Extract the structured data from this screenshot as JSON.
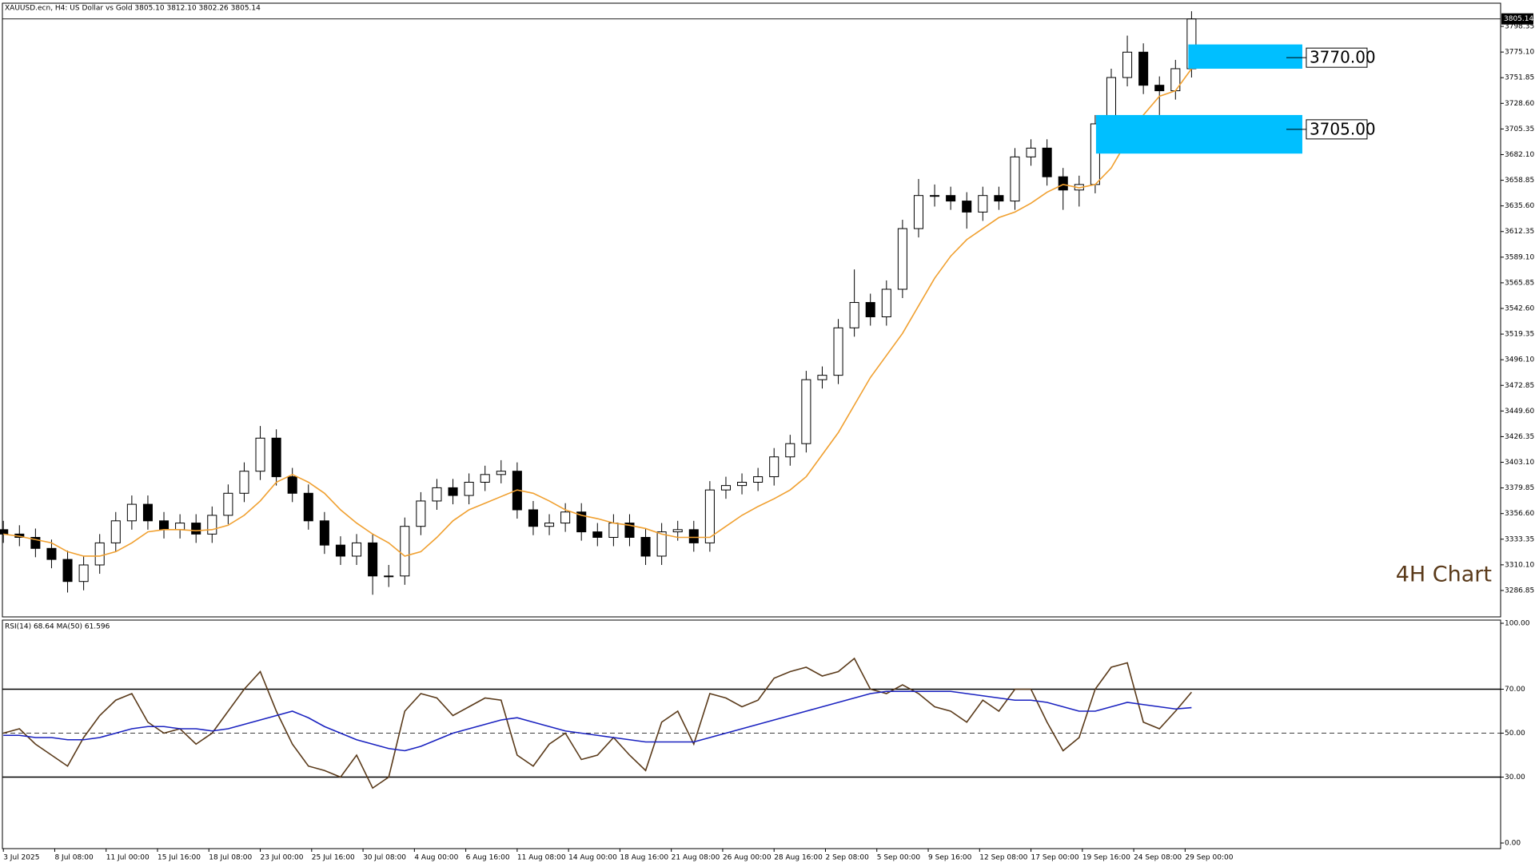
{
  "chart_data": [
    {
      "type": "candlestick",
      "title": "XAUUSD.ecn, H4:  US Dollar vs Gold  3805.10 3812.10 3802.26 3805.14",
      "annotation": "4H Chart",
      "xlim": [
        -0.06,
        93.25
      ],
      "xticks": [
        {
          "value": 0,
          "label": "3 Jul 2025"
        },
        {
          "value": 3.2,
          "label": "8 Jul 08:00"
        },
        {
          "value": 6.4,
          "label": "11 Jul 00:00"
        },
        {
          "value": 9.6,
          "label": "15 Jul 16:00"
        },
        {
          "value": 12.8,
          "label": "18 Jul 08:00"
        },
        {
          "value": 16,
          "label": "23 Jul 00:00"
        },
        {
          "value": 19.2,
          "label": "25 Jul 16:00"
        },
        {
          "value": 22.4,
          "label": "30 Jul 08:00"
        },
        {
          "value": 25.6,
          "label": "4 Aug 00:00"
        },
        {
          "value": 28.8,
          "label": "6 Aug 16:00"
        },
        {
          "value": 32,
          "label": "11 Aug 08:00"
        },
        {
          "value": 35.2,
          "label": "14 Aug 00:00"
        },
        {
          "value": 38.4,
          "label": "18 Aug 16:00"
        },
        {
          "value": 41.6,
          "label": "21 Aug 08:00"
        },
        {
          "value": 44.8,
          "label": "26 Aug 00:00"
        },
        {
          "value": 48,
          "label": "28 Aug 16:00"
        },
        {
          "value": 51.2,
          "label": "2 Sep 08:00"
        },
        {
          "value": 54.4,
          "label": "5 Sep 00:00"
        },
        {
          "value": 57.6,
          "label": "9 Sep 16:00"
        },
        {
          "value": 60.8,
          "label": "12 Sep 08:00"
        },
        {
          "value": 64,
          "label": "17 Sep 00:00"
        },
        {
          "value": 67.2,
          "label": "19 Sep 16:00"
        },
        {
          "value": 70.4,
          "label": "24 Sep 08:00"
        },
        {
          "value": 73.6,
          "label": "29 Sep 00:00"
        }
      ],
      "ylim": [
        3262.9,
        3819.4
      ],
      "yticks": [
        3286.85,
        {
          "value": 3310.1,
          "label": "3310.10"
        },
        3333.35,
        {
          "value": 3356.6,
          "label": "3356.60"
        },
        3379.85,
        {
          "value": 3403.1,
          "label": "3403.10"
        },
        3426.35,
        {
          "value": 3449.6,
          "label": "3449.60"
        },
        3472.85,
        {
          "value": 3496.1,
          "label": "3496.10"
        },
        3519.35,
        {
          "value": 3542.6,
          "label": "3542.60"
        },
        3565.85,
        {
          "value": 3589.1,
          "label": "3589.10"
        },
        3612.35,
        {
          "value": 3635.6,
          "label": "3635.60"
        },
        3658.85,
        {
          "value": 3682.1,
          "label": "3682.10"
        },
        3705.35,
        {
          "value": 3728.6,
          "label": "3728.60"
        },
        3751.85,
        {
          "value": 3775.1,
          "label": "3775.10"
        },
        3798.35
      ],
      "last_price": 3805.14,
      "up_color": "#ffffff",
      "down_color": "#000000",
      "wick_color": "#000000",
      "open": [
        3342,
        3338,
        3335,
        3325,
        3315,
        3295,
        3310,
        3330,
        3350,
        3365,
        3350,
        3342,
        3348,
        3338,
        3355,
        3375,
        3395,
        3425,
        3390,
        3375,
        3350,
        3328,
        3318,
        3330,
        3300,
        3300,
        3345,
        3368,
        3380,
        3373,
        3385,
        3392,
        3395,
        3360,
        3345,
        3348,
        3358,
        3340,
        3335,
        3348,
        3335,
        3318,
        3340,
        3342,
        3330,
        3378,
        3382,
        3385,
        3390,
        3408,
        3420,
        3478,
        3482,
        3525,
        3548,
        3535,
        3560,
        3615,
        3645,
        3645,
        3640,
        3630,
        3645,
        3640,
        3680,
        3688,
        3662,
        3650,
        3655,
        3710,
        3752,
        3775,
        3745,
        3740,
        3760
      ],
      "high": [
        3350,
        3346,
        3343,
        3333,
        3323,
        3318,
        3338,
        3358,
        3373,
        3373,
        3358,
        3356,
        3356,
        3363,
        3383,
        3403,
        3436,
        3433,
        3398,
        3383,
        3358,
        3336,
        3338,
        3338,
        3310,
        3353,
        3376,
        3388,
        3388,
        3393,
        3400,
        3405,
        3403,
        3368,
        3356,
        3366,
        3366,
        3348,
        3356,
        3356,
        3343,
        3348,
        3350,
        3350,
        3386,
        3390,
        3393,
        3398,
        3416,
        3428,
        3486,
        3490,
        3533,
        3578,
        3556,
        3568,
        3623,
        3660,
        3655,
        3653,
        3648,
        3653,
        3653,
        3688,
        3696,
        3696,
        3670,
        3663,
        3718,
        3760,
        3790,
        3783,
        3753,
        3768,
        3812.1
      ],
      "low": [
        3330,
        3327,
        3317,
        3307,
        3285,
        3287,
        3302,
        3322,
        3342,
        3342,
        3334,
        3334,
        3330,
        3330,
        3347,
        3367,
        3387,
        3382,
        3367,
        3342,
        3320,
        3310,
        3310,
        3283,
        3290,
        3292,
        3337,
        3360,
        3365,
        3365,
        3377,
        3384,
        3352,
        3337,
        3337,
        3340,
        3332,
        3327,
        3327,
        3327,
        3310,
        3310,
        3332,
        3322,
        3322,
        3370,
        3374,
        3377,
        3382,
        3400,
        3412,
        3470,
        3474,
        3517,
        3527,
        3527,
        3552,
        3607,
        3635,
        3632,
        3615,
        3622,
        3632,
        3632,
        3672,
        3654,
        3632,
        3635,
        3647,
        3702,
        3744,
        3737,
        3718,
        3732,
        3752
      ],
      "close": [
        3338,
        3335,
        3325,
        3315,
        3295,
        3310,
        3330,
        3350,
        3365,
        3350,
        3342,
        3348,
        3338,
        3355,
        3375,
        3395,
        3425,
        3390,
        3375,
        3350,
        3328,
        3318,
        3330,
        3300,
        3300,
        3345,
        3368,
        3380,
        3373,
        3385,
        3392,
        3395,
        3360,
        3345,
        3348,
        3358,
        3340,
        3335,
        3348,
        3335,
        3318,
        3340,
        3342,
        3330,
        3378,
        3382,
        3385,
        3390,
        3408,
        3420,
        3478,
        3482,
        3525,
        3548,
        3535,
        3560,
        3615,
        3645,
        3645,
        3640,
        3630,
        3645,
        3640,
        3680,
        3688,
        3662,
        3650,
        3655,
        3710,
        3752,
        3775,
        3745,
        3740,
        3760,
        3805.14
      ],
      "ma": {
        "color": "#f0a030",
        "values": [
          3338,
          3336,
          3333,
          3330,
          3322,
          3318,
          3318,
          3322,
          3330,
          3340,
          3342,
          3342,
          3341,
          3342,
          3346,
          3355,
          3368,
          3385,
          3392,
          3385,
          3375,
          3360,
          3348,
          3338,
          3330,
          3318,
          3322,
          3335,
          3350,
          3360,
          3366,
          3372,
          3378,
          3375,
          3368,
          3360,
          3355,
          3352,
          3348,
          3346,
          3343,
          3338,
          3335,
          3335,
          3335,
          3345,
          3355,
          3363,
          3370,
          3378,
          3390,
          3410,
          3430,
          3455,
          3480,
          3500,
          3520,
          3545,
          3570,
          3590,
          3605,
          3615,
          3625,
          3630,
          3638,
          3648,
          3655,
          3652,
          3655,
          3670,
          3695,
          3718,
          3735,
          3740,
          3760
        ]
      },
      "zones": [
        {
          "label": "3770.00",
          "value": 3770,
          "low": 3760,
          "high": 3782,
          "x": [
            73.8,
            80.9
          ],
          "color": "#00bfff"
        },
        {
          "label": "3705.00",
          "value": 3705,
          "low": 3683,
          "high": 3718,
          "x": [
            68.05,
            80.9
          ],
          "color": "#00bfff"
        }
      ]
    },
    {
      "type": "line",
      "title": "RSI(14) 68.64 MA(50) 61.596",
      "xlim": [
        -0.06,
        93.25
      ],
      "ylim": [
        -2.55,
        101.45
      ],
      "yticks": [
        {
          "value": 100,
          "label": "100.00"
        },
        {
          "value": 70,
          "label": "70.00"
        },
        {
          "value": 50,
          "label": "50.00"
        },
        {
          "value": 30,
          "label": "30.00"
        },
        {
          "value": 0,
          "label": "0.00"
        }
      ],
      "levels": [
        {
          "value": 70,
          "style": "solid"
        },
        {
          "value": 50,
          "style": "dashed"
        },
        {
          "value": 30,
          "style": "solid"
        }
      ],
      "series": [
        {
          "color": "#5a3a1a",
          "values": [
            50,
            52,
            45,
            40,
            35,
            48,
            58,
            65,
            68,
            55,
            50,
            52,
            45,
            50,
            60,
            70,
            78,
            60,
            45,
            35,
            33,
            30,
            40,
            25,
            30,
            60,
            68,
            66,
            58,
            62,
            66,
            65,
            40,
            35,
            45,
            50,
            38,
            40,
            48,
            40,
            33,
            55,
            60,
            45,
            68,
            66,
            62,
            65,
            75,
            78,
            80,
            76,
            78,
            84,
            70,
            68,
            72,
            68,
            62,
            60,
            55,
            65,
            60,
            70,
            70,
            55,
            42,
            48,
            70,
            80,
            82,
            55,
            52,
            60,
            68.64
          ]
        },
        {
          "color": "#1a22c0",
          "values": [
            49,
            49,
            48,
            48,
            47,
            47,
            48,
            50,
            52,
            53,
            53,
            52,
            52,
            51,
            52,
            54,
            56,
            58,
            60,
            57,
            53,
            50,
            47,
            45,
            43,
            42,
            44,
            47,
            50,
            52,
            54,
            56,
            57,
            55,
            53,
            51,
            50,
            49,
            48,
            47,
            46,
            46,
            46,
            46,
            48,
            50,
            52,
            54,
            56,
            58,
            60,
            62,
            64,
            66,
            68,
            69,
            69,
            69,
            69,
            69,
            68,
            67,
            66,
            65,
            65,
            64,
            62,
            60,
            60,
            62,
            64,
            63,
            62,
            61,
            61.596
          ]
        }
      ]
    }
  ]
}
